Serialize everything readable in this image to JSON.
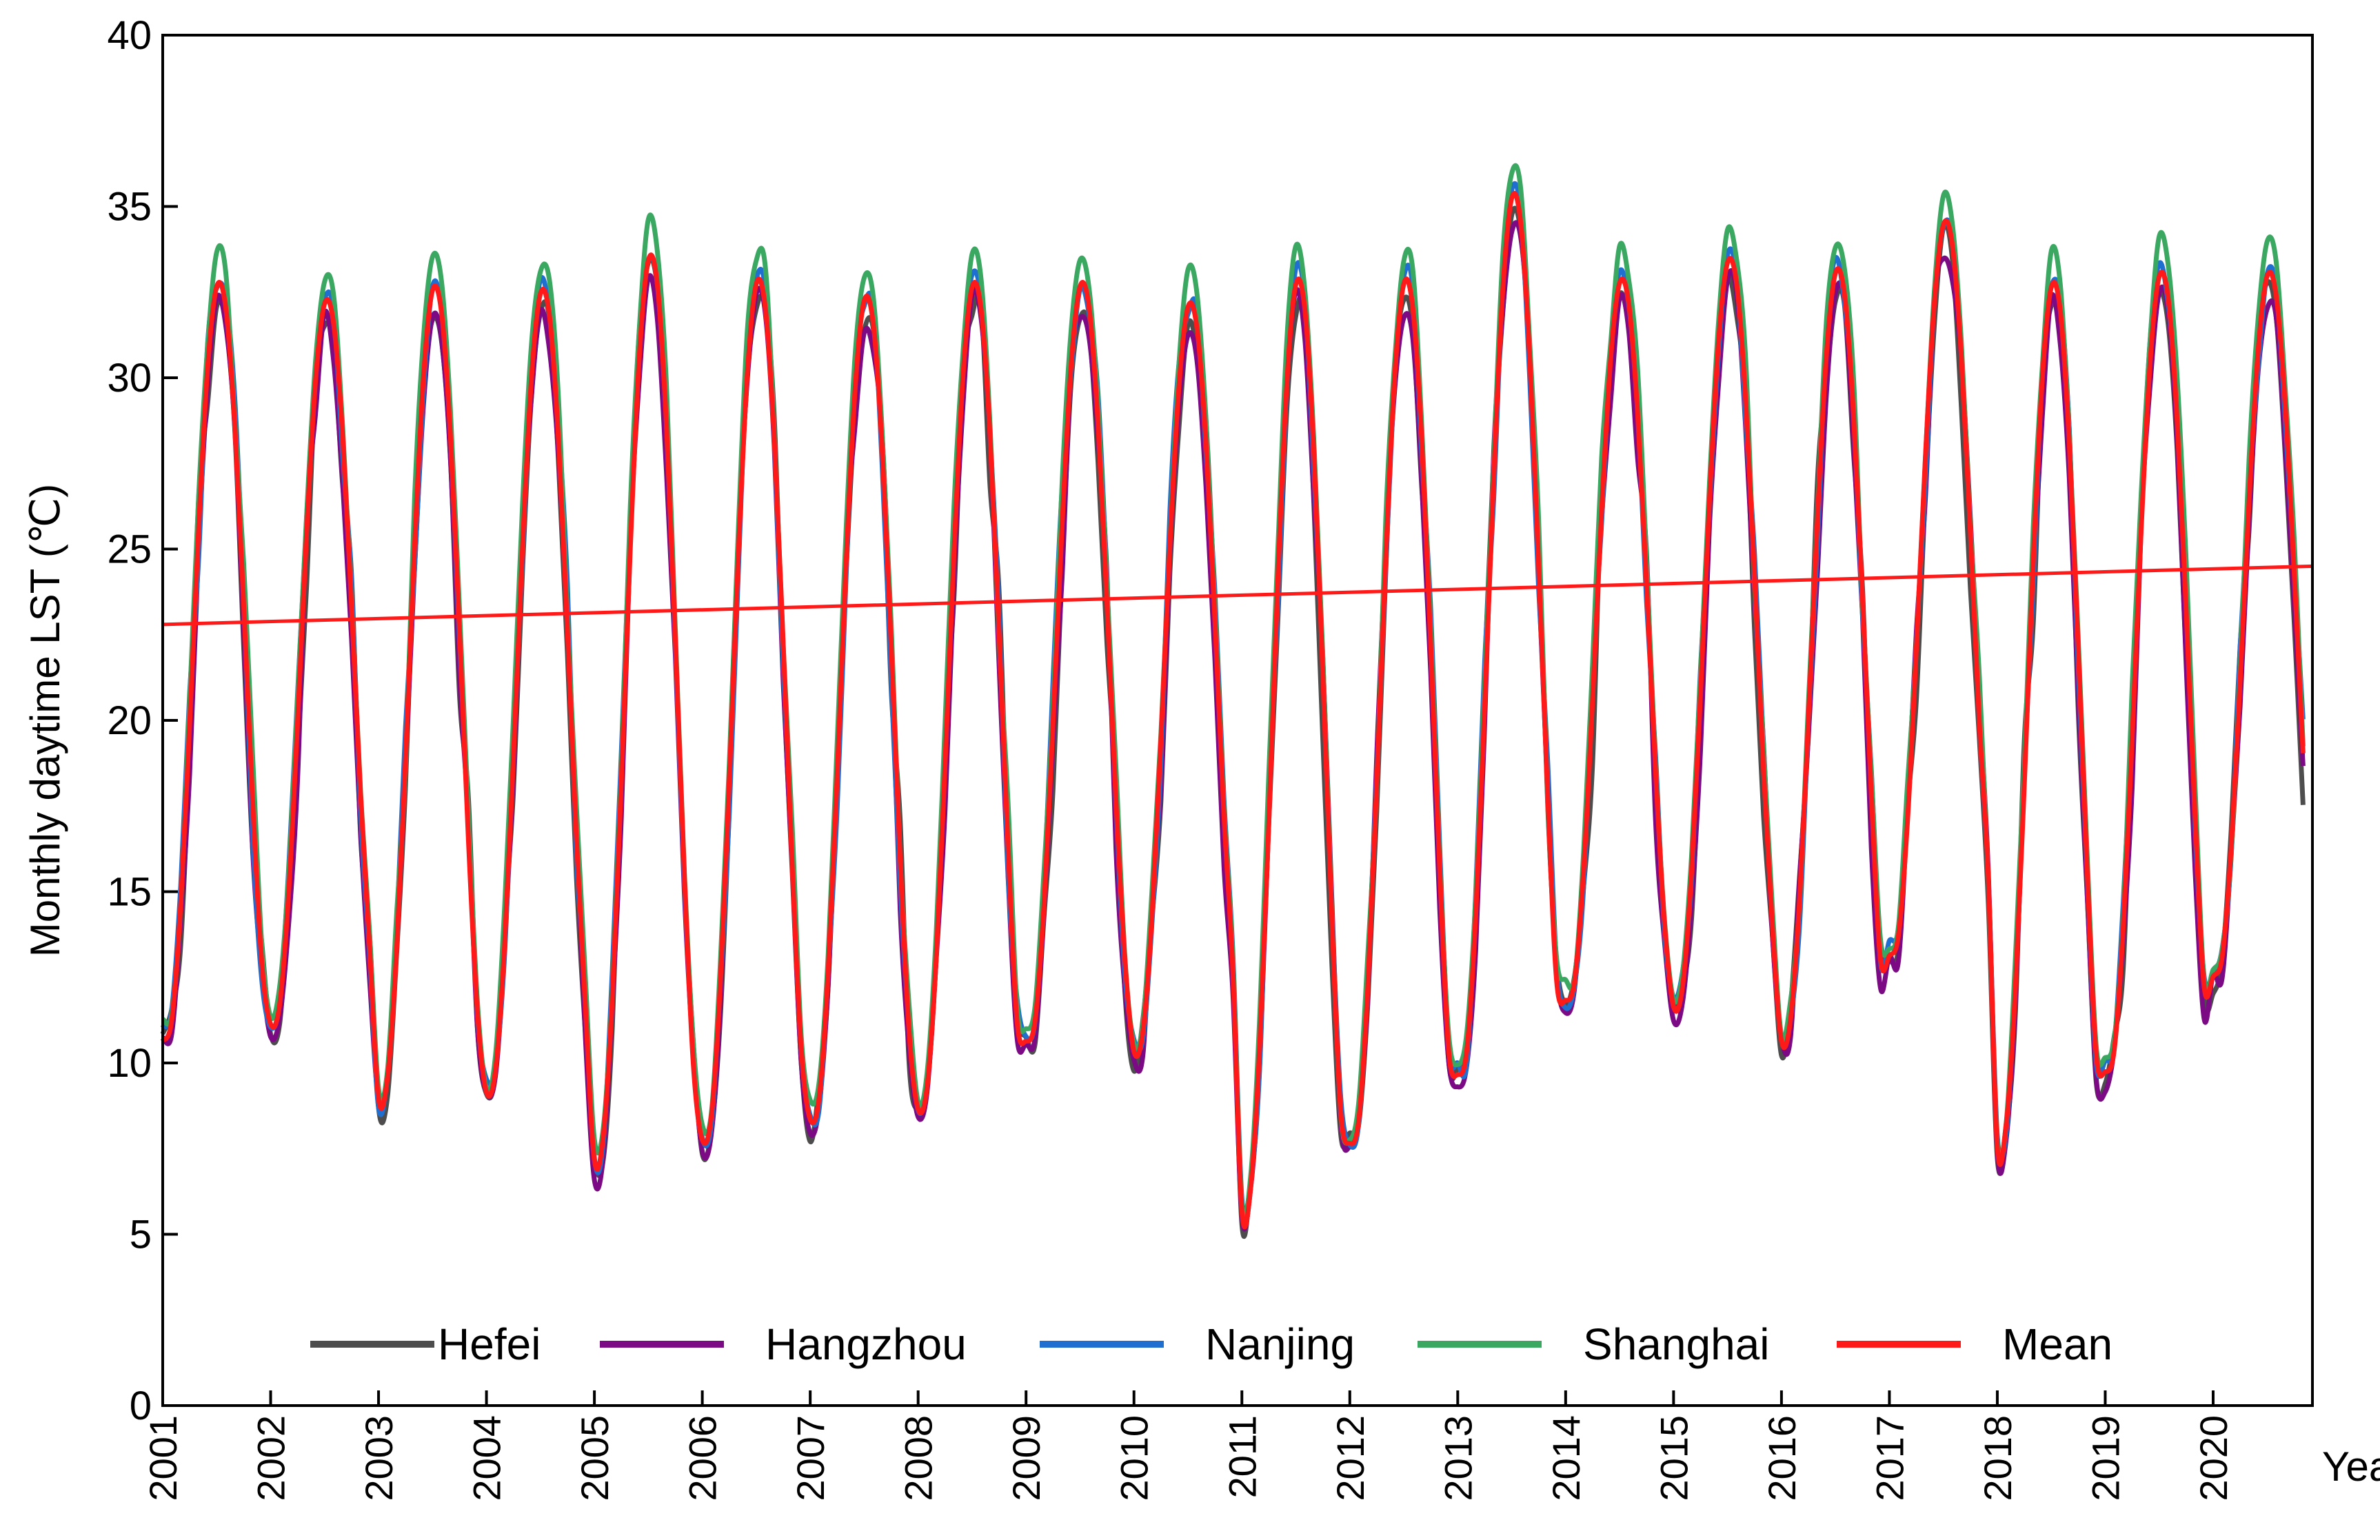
{
  "chart_data": {
    "type": "line",
    "title": "",
    "xlabel": "Year",
    "ylabel": "Monthly daytime LST (℃)",
    "xlim": [
      2001,
      2020.92
    ],
    "ylim": [
      0,
      40
    ],
    "y_ticks": [
      "0",
      "5",
      "10",
      "15",
      "20",
      "25",
      "30",
      "35",
      "40"
    ],
    "x_ticks": [
      "2001",
      "2002",
      "2003",
      "2004",
      "2005",
      "2006",
      "2007",
      "2008",
      "2009",
      "2010",
      "2011",
      "2012",
      "2013",
      "2014",
      "2015",
      "2016",
      "2017",
      "2018",
      "2019",
      "2020"
    ],
    "legend_position": "bottom-center",
    "series": [
      {
        "name": "Hefei",
        "color": "#4d4d4d",
        "offset": -0.45,
        "noise": 1.2
      },
      {
        "name": "Hangzhou",
        "color": "#7b0a84",
        "offset": -0.6,
        "noise": 1.0
      },
      {
        "name": "Nanjing",
        "color": "#1f6fd1",
        "offset": 0.15,
        "noise": 0.9
      },
      {
        "name": "Shanghai",
        "color": "#3aa860",
        "offset": 0.9,
        "noise": 0.7
      },
      {
        "name": "Mean",
        "color": "#ff1a1a",
        "offset": 0.0,
        "noise": 0.0
      }
    ],
    "annual_max": [
      32.8,
      32.3,
      32.7,
      32.6,
      33.6,
      32.9,
      32.4,
      32.8,
      32.8,
      32.2,
      32.9,
      32.9,
      35.4,
      32.9,
      33.5,
      33.2,
      34.6,
      32.8,
      33.1,
      33.1
    ],
    "annual_min": [
      10.5,
      11.0,
      8.8,
      9.0,
      7.0,
      7.6,
      8.2,
      8.5,
      10.5,
      10.2,
      5.5,
      7.5,
      9.5,
      11.7,
      11.5,
      10.5,
      13.0,
      7.4,
      9.6,
      12.4
    ],
    "trend_line": {
      "name": "Mean trend",
      "start": 22.8,
      "end": 24.5,
      "color": "#ff1a1a"
    }
  }
}
